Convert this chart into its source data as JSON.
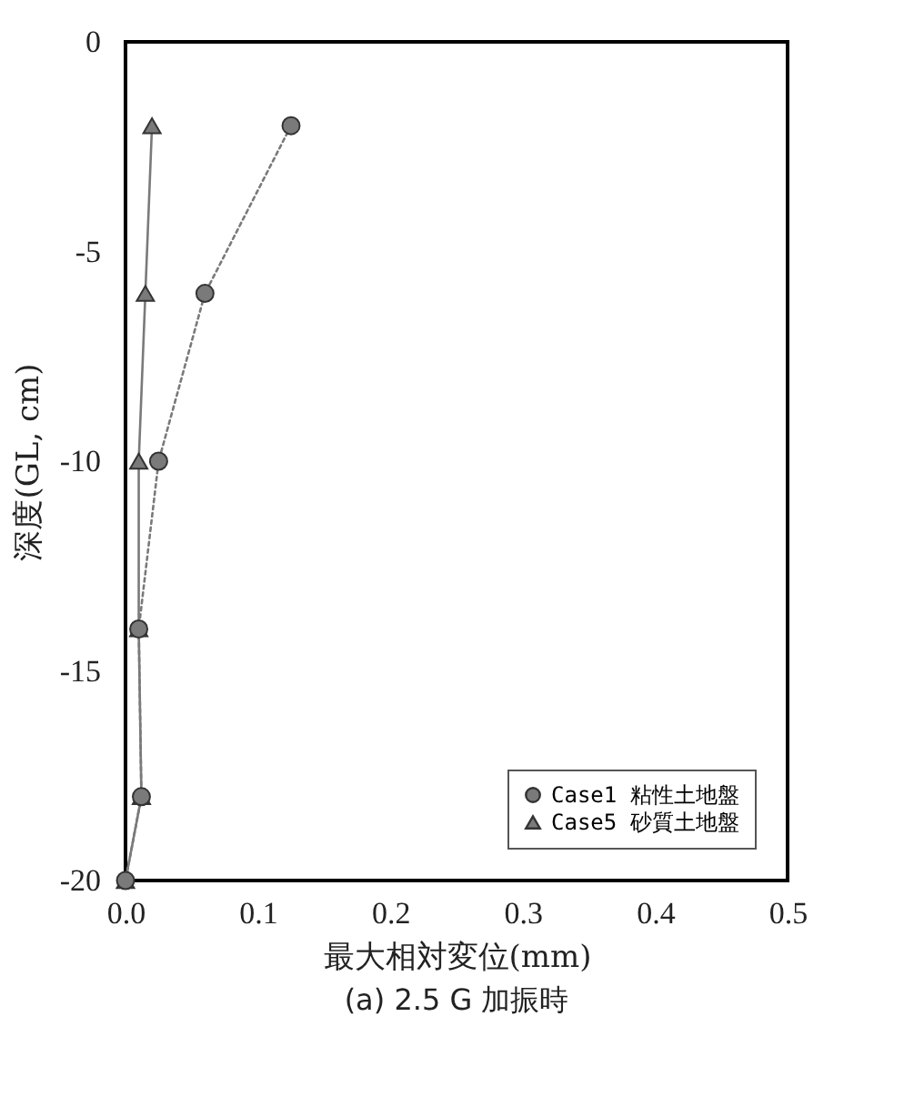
{
  "chart_data": {
    "type": "line",
    "title": "(a) 2.5 G 加振時",
    "xlabel": "最大相対変位(mm)",
    "ylabel": "深度(GL, cm)",
    "xlim": [
      0,
      0.5
    ],
    "xticks": [
      {
        "value": 0,
        "label": "0.0"
      },
      0.1,
      0.2,
      0.3,
      0.4,
      0.5
    ],
    "ylim": [
      -20,
      0
    ],
    "yticks": [
      -20,
      -15,
      -10,
      -5,
      0
    ],
    "grid": false,
    "legend": "bottom right",
    "series": [
      {
        "name": "Case1 粘性土地盤",
        "color": "#7a7a7a",
        "marker": "circle",
        "line_style": "dotted",
        "x": [
          0.125,
          0.06,
          0.025,
          0.01,
          0.012,
          0
        ],
        "values": [
          -2,
          -6,
          -10,
          -14,
          -18,
          -20
        ]
      },
      {
        "name": "Case5 砂質土地盤",
        "color": "#7a7a7a",
        "marker": "triangle",
        "line_style": "solid",
        "x": [
          0.02,
          0.015,
          0.01,
          0.01,
          0.012,
          0
        ],
        "values": [
          -2,
          -6,
          -10,
          -14,
          -18,
          -20
        ]
      }
    ]
  }
}
